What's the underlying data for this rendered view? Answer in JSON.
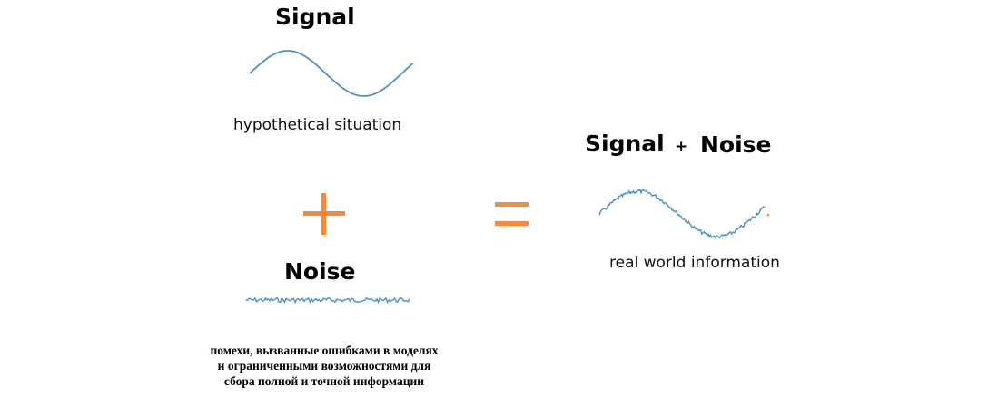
{
  "signal": {
    "title": "Signal",
    "caption": "hypothetical situation"
  },
  "noise": {
    "title": "Noise",
    "description_lines": [
      "помехи, вызванные ошибками в моделях",
      "и ограниченными возможностями для",
      "сбора полной и точной информации"
    ]
  },
  "result": {
    "title_left": "Signal",
    "plus": "+",
    "title_right": "Noise",
    "caption": "real world information"
  },
  "operators": {
    "plus": "+",
    "equals": "="
  },
  "colors": {
    "wave": "#4a90c8",
    "operator": "#f58a3a",
    "text": "#000000"
  }
}
